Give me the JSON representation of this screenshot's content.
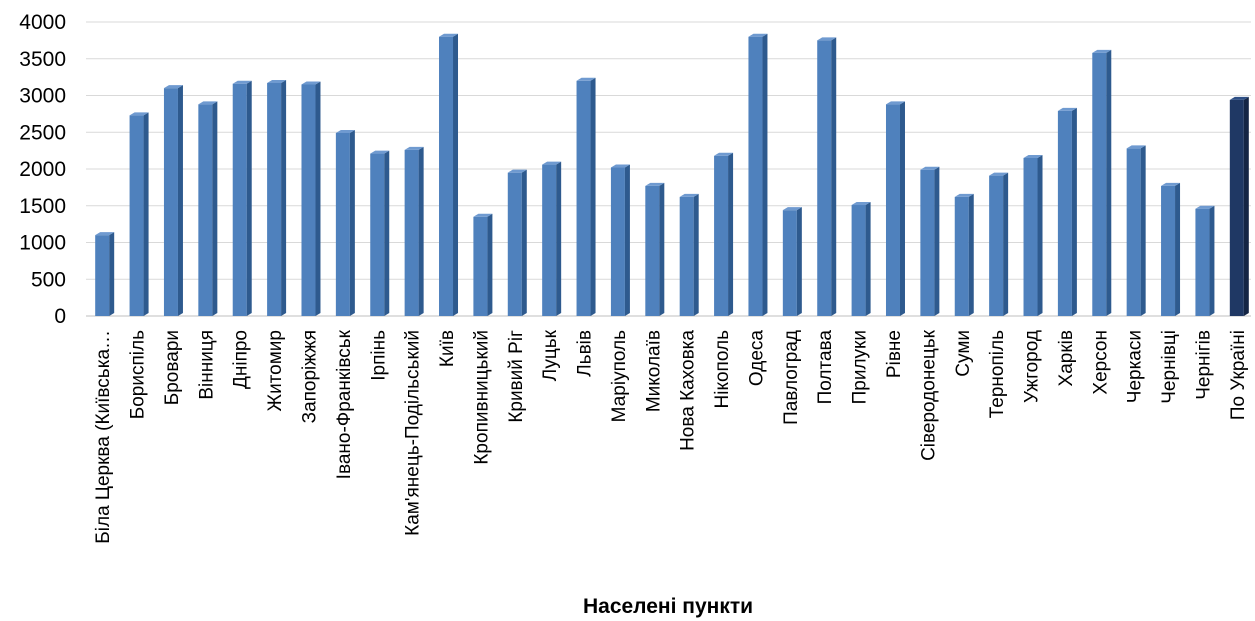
{
  "chart_data": {
    "type": "bar",
    "title": "",
    "xlabel": "Населені пункти",
    "ylabel": "",
    "ylim": [
      0,
      4000
    ],
    "yticks": [
      0,
      500,
      1000,
      1500,
      2000,
      2500,
      3000,
      3500,
      4000
    ],
    "grid": true,
    "legend": "none",
    "colors": {
      "bar_front": "#4F81BD",
      "bar_side": "#2E5A8E",
      "bar_top": "#6F9AD0",
      "highlight_front": "#1F3864",
      "highlight_side": "#142544",
      "highlight_top": "#2E4F85",
      "gridline": "#D9D9D9",
      "axis": "#BFBFBF"
    },
    "highlight_index": 33,
    "categories": [
      "Біла Церква (Київська…",
      "Бориспіль",
      "Бровари",
      "Вінниця",
      "Дніпро",
      "Житомир",
      "Запоріжжя",
      "Івано-Франківськ",
      "Ірпінь",
      "Кам'янець-Подільський",
      "Київ",
      "Кропивницький",
      "Кривий Ріг",
      "Луцьк",
      "Львів",
      "Маріуполь",
      "Миколаїв",
      "Нова Каховка",
      "Нікополь",
      "Одеса",
      "Павлоград",
      "Полтава",
      "Прилуки",
      "Рівне",
      "Сіверодонецьк",
      "Суми",
      "Тернопіль",
      "Ужгород",
      "Харків",
      "Херсон",
      "Черкаси",
      "Чернівці",
      "Чернігів",
      "По Україні"
    ],
    "values": [
      1100,
      2730,
      3100,
      2880,
      3160,
      3170,
      3150,
      2490,
      2210,
      2260,
      3800,
      1350,
      1950,
      2060,
      3200,
      2020,
      1770,
      1620,
      2180,
      3800,
      1440,
      3750,
      1510,
      2880,
      1990,
      1620,
      1910,
      2150,
      2790,
      3580,
      2280,
      1770,
      1460,
      2940
    ]
  }
}
